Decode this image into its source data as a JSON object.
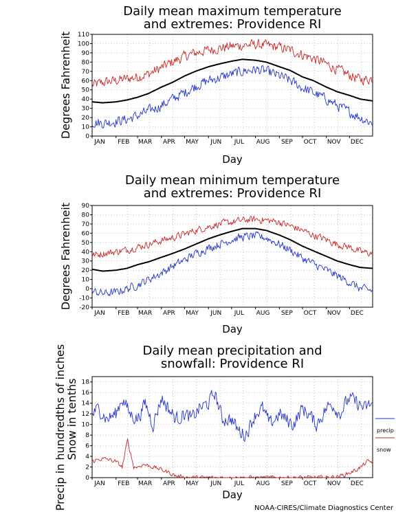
{
  "colors": {
    "max_series": "#cc2222",
    "mean_series": "#000000",
    "min_series": "#2233cc",
    "precip": "#2233cc",
    "snow": "#cc2222",
    "grid": "#999999"
  },
  "credit": "NOAA-CIRES/Climate Diagnostics Center",
  "chart_data": [
    {
      "type": "line",
      "title_line1": "Daily mean maximum temperature",
      "title_line2": "and extremes: Providence RI",
      "xlabel": "Day",
      "ylabel": "Degrees Fahrenheit",
      "ylim": [
        0,
        110
      ],
      "yticks": [
        0,
        10,
        20,
        30,
        40,
        50,
        60,
        70,
        80,
        90,
        100,
        110
      ],
      "months": [
        "JAN",
        "FEB",
        "MAR",
        "APR",
        "MAY",
        "JUN",
        "JUL",
        "AUG",
        "SEP",
        "OCT",
        "NOV",
        "DEC"
      ],
      "grid": true,
      "series": [
        {
          "role": "max",
          "doy": [
            1,
            15,
            32,
            46,
            60,
            74,
            91,
            105,
            121,
            135,
            152,
            166,
            182,
            196,
            213,
            227,
            244,
            258,
            274,
            288,
            305,
            319,
            335,
            349,
            365
          ],
          "values": [
            55,
            58,
            60,
            62,
            64,
            67,
            74,
            80,
            86,
            90,
            93,
            95,
            97,
            98,
            99,
            98,
            96,
            93,
            88,
            84,
            78,
            72,
            66,
            61,
            62
          ]
        },
        {
          "role": "mean",
          "doy": [
            1,
            15,
            32,
            46,
            60,
            74,
            91,
            105,
            121,
            135,
            152,
            166,
            182,
            196,
            213,
            227,
            244,
            258,
            274,
            288,
            305,
            319,
            335,
            349,
            365
          ],
          "values": [
            37,
            36,
            37,
            39,
            42,
            46,
            53,
            58,
            65,
            70,
            75,
            78,
            81,
            83,
            82,
            80,
            75,
            71,
            64,
            60,
            53,
            48,
            44,
            40,
            38
          ]
        },
        {
          "role": "min",
          "doy": [
            1,
            15,
            32,
            46,
            60,
            74,
            91,
            105,
            121,
            135,
            152,
            166,
            182,
            196,
            213,
            227,
            244,
            258,
            274,
            288,
            305,
            319,
            335,
            349,
            365
          ],
          "values": [
            15,
            14,
            16,
            18,
            22,
            27,
            33,
            40,
            47,
            54,
            60,
            63,
            67,
            70,
            72,
            70,
            65,
            60,
            52,
            47,
            40,
            33,
            26,
            20,
            14
          ]
        }
      ]
    },
    {
      "type": "line",
      "title_line1": "Daily mean minimum temperature",
      "title_line2": "and extremes: Providence RI",
      "xlabel": "Day",
      "ylabel": "Degrees Fahrenheit",
      "ylim": [
        -20,
        90
      ],
      "yticks": [
        -20,
        -10,
        0,
        10,
        20,
        30,
        40,
        50,
        60,
        70,
        80,
        90
      ],
      "months": [
        "JAN",
        "FEB",
        "MAR",
        "APR",
        "MAY",
        "JUN",
        "JUL",
        "AUG",
        "SEP",
        "OCT",
        "NOV",
        "DEC"
      ],
      "grid": true,
      "series": [
        {
          "role": "max",
          "doy": [
            1,
            15,
            32,
            46,
            60,
            74,
            91,
            105,
            121,
            135,
            152,
            166,
            182,
            196,
            213,
            227,
            244,
            258,
            274,
            288,
            305,
            319,
            335,
            349,
            365
          ],
          "values": [
            36,
            38,
            40,
            42,
            45,
            48,
            52,
            55,
            59,
            63,
            67,
            70,
            72,
            74,
            75,
            74,
            72,
            68,
            63,
            58,
            53,
            48,
            45,
            40,
            38
          ]
        },
        {
          "role": "mean",
          "doy": [
            1,
            15,
            32,
            46,
            60,
            74,
            91,
            105,
            121,
            135,
            152,
            166,
            182,
            196,
            213,
            227,
            244,
            258,
            274,
            288,
            305,
            319,
            335,
            349,
            365
          ],
          "values": [
            21,
            19,
            20,
            22,
            26,
            29,
            34,
            38,
            43,
            48,
            54,
            58,
            62,
            65,
            65,
            63,
            58,
            53,
            46,
            41,
            35,
            30,
            26,
            23,
            22
          ]
        },
        {
          "role": "min",
          "doy": [
            1,
            15,
            32,
            46,
            60,
            74,
            91,
            105,
            121,
            135,
            152,
            166,
            182,
            196,
            213,
            227,
            244,
            258,
            274,
            288,
            305,
            319,
            335,
            349,
            365
          ],
          "values": [
            -3,
            -5,
            -4,
            0,
            4,
            10,
            17,
            24,
            31,
            38,
            44,
            48,
            53,
            56,
            57,
            55,
            48,
            42,
            33,
            27,
            20,
            14,
            7,
            0,
            -2
          ]
        }
      ]
    },
    {
      "type": "line",
      "title_line1": "Daily mean precipitation and",
      "title_line2": "snowfall: Providence RI",
      "xlabel": "Day",
      "ylabel_line1": "Precip in hundredths of inches",
      "ylabel_line2": "Snow in tenths",
      "ylim": [
        0,
        19
      ],
      "yticks": [
        0,
        2,
        4,
        6,
        8,
        10,
        12,
        14,
        16,
        18
      ],
      "months": [
        "JAN",
        "FEB",
        "MAR",
        "APR",
        "MAY",
        "JUN",
        "JUL",
        "AUG",
        "SEP",
        "OCT",
        "NOV",
        "DEC"
      ],
      "grid": true,
      "legend": {
        "position": "right",
        "entries": [
          "precip",
          "snow"
        ]
      },
      "series": [
        {
          "name": "precip",
          "doy": [
            1,
            10,
            20,
            32,
            40,
            50,
            60,
            70,
            80,
            91,
            100,
            110,
            121,
            130,
            140,
            152,
            160,
            170,
            182,
            190,
            200,
            213,
            222,
            232,
            244,
            252,
            262,
            274,
            282,
            292,
            305,
            312,
            322,
            335,
            345,
            355,
            365
          ],
          "values": [
            12,
            13,
            11,
            12,
            15,
            12,
            11,
            14,
            10,
            15,
            13,
            11,
            12,
            11,
            13,
            14,
            16,
            11,
            11,
            9,
            8,
            12,
            13,
            10,
            12,
            11,
            10,
            13,
            12,
            10,
            13,
            14,
            12,
            15,
            14,
            13,
            14
          ]
        },
        {
          "name": "snow",
          "doy": [
            1,
            10,
            20,
            32,
            40,
            47,
            55,
            60,
            68,
            80,
            91,
            100,
            110,
            121,
            135,
            152,
            182,
            213,
            244,
            274,
            305,
            320,
            330,
            340,
            350,
            358,
            365
          ],
          "values": [
            3,
            3.5,
            3.5,
            3,
            2,
            7,
            2,
            2,
            2.5,
            2,
            1.5,
            1,
            0.3,
            0.1,
            0,
            0,
            0,
            0,
            0,
            0,
            0,
            0.2,
            0.6,
            1.2,
            2,
            3,
            3
          ]
        }
      ]
    }
  ]
}
